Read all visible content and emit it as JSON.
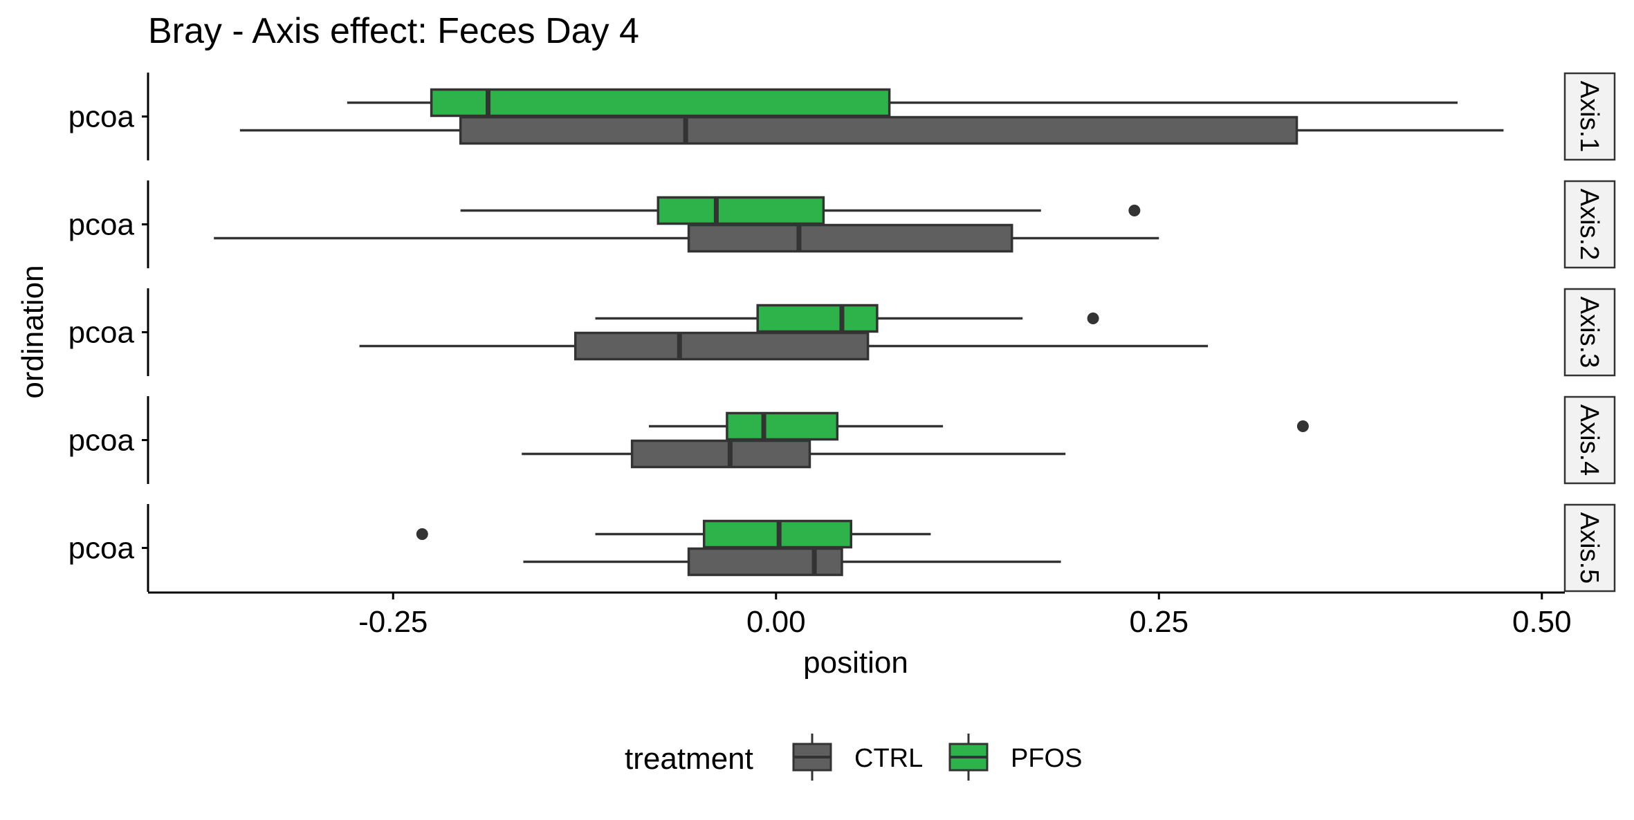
{
  "chart_data": {
    "type": "boxplot",
    "title": "Bray - Axis effect: Feces Day 4",
    "xlabel": "position",
    "ylabel": "ordination",
    "xlim": [
      -0.41,
      0.515
    ],
    "xticks": [
      -0.25,
      0.0,
      0.25,
      0.5
    ],
    "xtick_labels": [
      "-0.25",
      "0.00",
      "0.25",
      "0.50"
    ],
    "grid": false,
    "legend": {
      "title": "treatment",
      "position": "bottom",
      "entries": [
        "CTRL",
        "PFOS"
      ]
    },
    "colors": {
      "CTRL": "#5f5f5f",
      "PFOS": "#2db34a",
      "outline": "#333333"
    },
    "panels": [
      {
        "strip_label": "Axis.1",
        "category": "pcoa",
        "boxes": [
          {
            "treatment": "PFOS",
            "whisker_low": -0.28,
            "q1": -0.225,
            "median": -0.188,
            "q3": 0.074,
            "whisker_high": 0.445,
            "outliers": []
          },
          {
            "treatment": "CTRL",
            "whisker_low": -0.35,
            "q1": -0.206,
            "median": -0.059,
            "q3": 0.34,
            "whisker_high": 0.475,
            "outliers": []
          }
        ]
      },
      {
        "strip_label": "Axis.2",
        "category": "pcoa",
        "boxes": [
          {
            "treatment": "PFOS",
            "whisker_low": -0.206,
            "q1": -0.077,
            "median": -0.039,
            "q3": 0.031,
            "whisker_high": 0.173,
            "outliers": [
              0.234
            ]
          },
          {
            "treatment": "CTRL",
            "whisker_low": -0.367,
            "q1": -0.057,
            "median": 0.015,
            "q3": 0.154,
            "whisker_high": 0.25,
            "outliers": []
          }
        ]
      },
      {
        "strip_label": "Axis.3",
        "category": "pcoa",
        "boxes": [
          {
            "treatment": "PFOS",
            "whisker_low": -0.118,
            "q1": -0.012,
            "median": 0.043,
            "q3": 0.066,
            "whisker_high": 0.161,
            "outliers": [
              0.207
            ]
          },
          {
            "treatment": "CTRL",
            "whisker_low": -0.272,
            "q1": -0.131,
            "median": -0.063,
            "q3": 0.06,
            "whisker_high": 0.282,
            "outliers": []
          }
        ]
      },
      {
        "strip_label": "Axis.4",
        "category": "pcoa",
        "boxes": [
          {
            "treatment": "PFOS",
            "whisker_low": -0.083,
            "q1": -0.032,
            "median": -0.008,
            "q3": 0.04,
            "whisker_high": 0.109,
            "outliers": [
              0.344
            ]
          },
          {
            "treatment": "CTRL",
            "whisker_low": -0.166,
            "q1": -0.094,
            "median": -0.03,
            "q3": 0.022,
            "whisker_high": 0.189,
            "outliers": []
          }
        ]
      },
      {
        "strip_label": "Axis.5",
        "category": "pcoa",
        "boxes": [
          {
            "treatment": "PFOS",
            "whisker_low": -0.118,
            "q1": -0.047,
            "median": 0.002,
            "q3": 0.049,
            "whisker_high": 0.101,
            "outliers": [
              -0.231
            ]
          },
          {
            "treatment": "CTRL",
            "whisker_low": -0.165,
            "q1": -0.057,
            "median": 0.025,
            "q3": 0.043,
            "whisker_high": 0.186,
            "outliers": []
          }
        ]
      }
    ]
  }
}
